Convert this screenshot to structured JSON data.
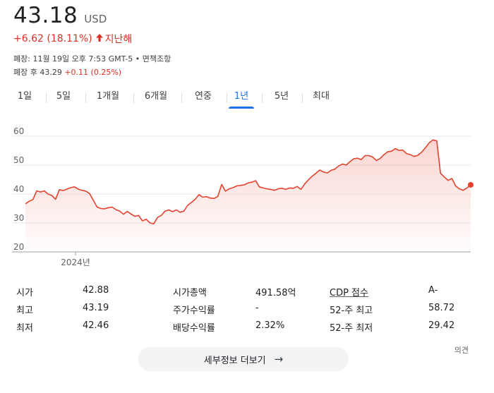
{
  "quote": {
    "price": "43.18",
    "currency": "USD",
    "change": "+6.62 (18.11%)",
    "period": "지난해",
    "closed_info": "폐장: 11월 19일 오후 7:53 GMT-5 • 면책조항",
    "after_hours_label": "폐장 후 43.29",
    "after_hours_change": "+0.11 (0.25%)"
  },
  "tabs": [
    {
      "label": "1일",
      "active": false
    },
    {
      "label": "5일",
      "active": false
    },
    {
      "label": "1개월",
      "active": false
    },
    {
      "label": "6개월",
      "active": false
    },
    {
      "label": "연중",
      "active": false
    },
    {
      "label": "1년",
      "active": true
    },
    {
      "label": "5년",
      "active": false
    },
    {
      "label": "최대",
      "active": false
    }
  ],
  "colors": {
    "line": "#e2432f",
    "accent": "#1a73e8",
    "down": "#d93025"
  },
  "chart_data": {
    "type": "area",
    "ylim": [
      20,
      62
    ],
    "yticks": [
      20,
      30,
      40,
      50,
      60
    ],
    "ytick_labels": [
      "20",
      "30",
      "40",
      "50",
      "60"
    ],
    "x_label_2024": "2024년",
    "grid": true,
    "values": [
      36.6,
      37.5,
      38.1,
      41.1,
      40.7,
      41.1,
      40.0,
      39.5,
      38.2,
      41.5,
      41.2,
      41.7,
      42.2,
      42.5,
      41.7,
      41.3,
      41.0,
      40.2,
      37.8,
      35.5,
      35.0,
      34.9,
      35.3,
      35.5,
      34.6,
      34.1,
      33.0,
      34.0,
      33.1,
      32.3,
      32.6,
      30.7,
      31.3,
      30.0,
      29.7,
      31.9,
      32.6,
      34.1,
      34.5,
      33.9,
      34.5,
      33.7,
      34.1,
      36.1,
      37.1,
      38.2,
      39.8,
      38.9,
      39.1,
      38.6,
      38.5,
      39.2,
      43.3,
      41.0,
      41.8,
      42.2,
      42.8,
      43.0,
      43.2,
      43.8,
      44.1,
      44.6,
      42.5,
      42.1,
      41.8,
      41.6,
      41.3,
      41.8,
      42.0,
      41.6,
      42.1,
      42.0,
      42.6,
      41.6,
      43.5,
      44.9,
      46.2,
      47.2,
      48.3,
      47.6,
      47.3,
      48.2,
      48.6,
      49.7,
      50.4,
      50.0,
      51.2,
      52.2,
      52.4,
      51.9,
      53.3,
      53.3,
      52.8,
      51.6,
      52.3,
      53.6,
      54.6,
      54.8,
      55.7,
      55.1,
      55.2,
      54.0,
      53.6,
      53.0,
      53.4,
      54.5,
      56.0,
      57.7,
      58.7,
      58.4,
      47.2,
      45.9,
      44.7,
      45.4,
      42.8,
      41.8,
      41.3,
      42.1,
      43.18
    ],
    "last_value": 43.18
  },
  "stats": {
    "col1": [
      {
        "label": "시가",
        "value": "42.88"
      },
      {
        "label": "최고",
        "value": "43.19"
      },
      {
        "label": "최저",
        "value": "42.46"
      }
    ],
    "col2": [
      {
        "label": "시가총액",
        "value": "491.58억"
      },
      {
        "label": "주가수익률",
        "value": "-"
      },
      {
        "label": "배당수익률",
        "value": "2.32%"
      }
    ],
    "col3": [
      {
        "label": "CDP 점수",
        "value": "A-"
      },
      {
        "label": "52-주 최고",
        "value": "58.72"
      },
      {
        "label": "52-주 최저",
        "value": "29.42"
      }
    ]
  },
  "footer": {
    "feedback": "의견",
    "more_button": "세부정보 더보기"
  }
}
